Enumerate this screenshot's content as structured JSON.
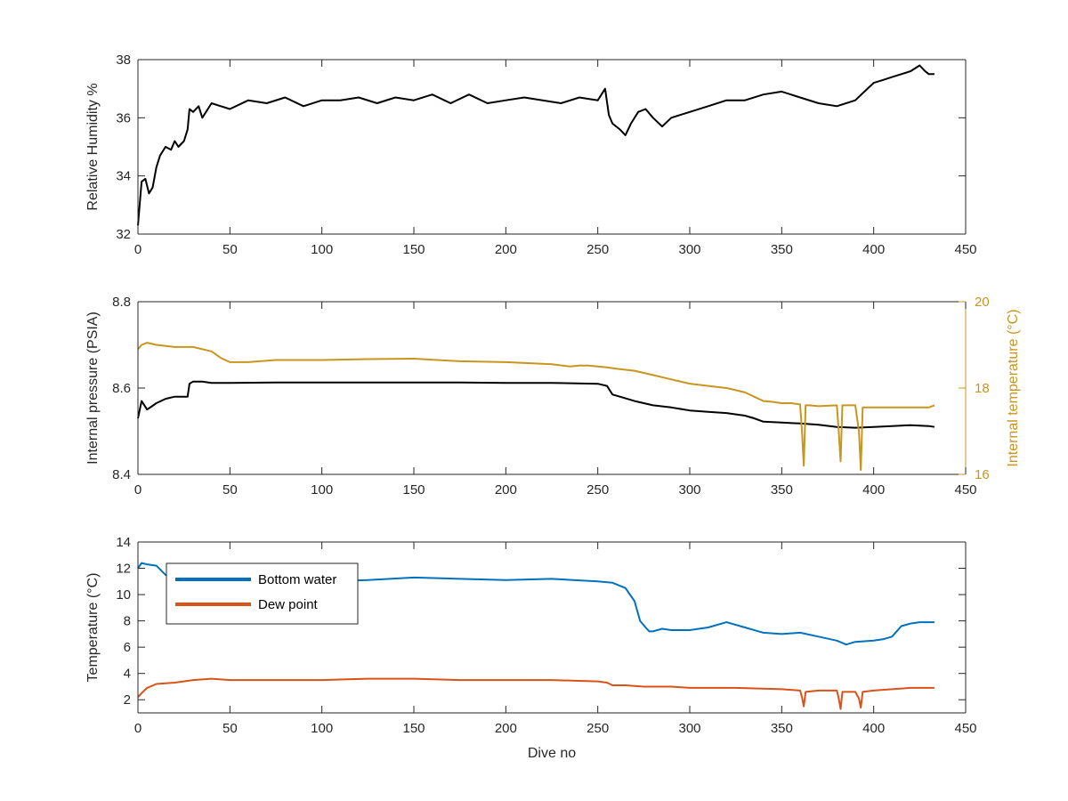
{
  "chart_data": [
    {
      "type": "line",
      "title": "",
      "xlabel": "",
      "ylabel": "Relative Humidity %",
      "xlim": [
        0,
        450
      ],
      "ylim": [
        32,
        38
      ],
      "xticks": [
        0,
        50,
        100,
        150,
        200,
        250,
        300,
        350,
        400,
        450
      ],
      "yticks": [
        32,
        34,
        36,
        38
      ],
      "grid": false,
      "series": [
        {
          "color": "#000000",
          "x": [
            0,
            2,
            4,
            6,
            8,
            10,
            12,
            15,
            18,
            20,
            22,
            25,
            27,
            28,
            30,
            33,
            35,
            40,
            45,
            50,
            60,
            70,
            80,
            90,
            100,
            110,
            120,
            130,
            140,
            150,
            160,
            170,
            180,
            190,
            200,
            210,
            220,
            230,
            240,
            250,
            254,
            256,
            258,
            262,
            265,
            268,
            272,
            276,
            280,
            285,
            290,
            300,
            310,
            320,
            330,
            340,
            350,
            360,
            370,
            380,
            390,
            395,
            400,
            405,
            410,
            415,
            420,
            425,
            428,
            430,
            433
          ],
          "y": [
            32.3,
            33.8,
            33.9,
            33.4,
            33.6,
            34.3,
            34.7,
            35.0,
            34.9,
            35.2,
            35.0,
            35.2,
            35.6,
            36.3,
            36.2,
            36.4,
            36.0,
            36.5,
            36.4,
            36.3,
            36.6,
            36.5,
            36.7,
            36.4,
            36.6,
            36.6,
            36.7,
            36.5,
            36.7,
            36.6,
            36.8,
            36.5,
            36.8,
            36.5,
            36.6,
            36.7,
            36.6,
            36.5,
            36.7,
            36.6,
            37.0,
            36.1,
            35.8,
            35.6,
            35.4,
            35.8,
            36.2,
            36.3,
            36.0,
            35.7,
            36.0,
            36.2,
            36.4,
            36.6,
            36.6,
            36.8,
            36.9,
            36.7,
            36.5,
            36.4,
            36.6,
            36.9,
            37.2,
            37.3,
            37.4,
            37.5,
            37.6,
            37.8,
            37.6,
            37.5,
            37.5
          ]
        }
      ]
    },
    {
      "type": "line",
      "title": "",
      "xlabel": "",
      "ylabel": "Internal pressure (PSIA)",
      "ylabel_right": "Internal temperature (°C)",
      "xlim": [
        0,
        450
      ],
      "ylim": [
        8.4,
        8.8
      ],
      "ylim_right": [
        16,
        20
      ],
      "xticks": [
        0,
        50,
        100,
        150,
        200,
        250,
        300,
        350,
        400,
        450
      ],
      "yticks": [
        8.4,
        8.6,
        8.8
      ],
      "yticks_right": [
        16,
        18,
        20
      ],
      "grid": false,
      "series": [
        {
          "axis": "left",
          "color": "#000000",
          "x": [
            0,
            2,
            5,
            10,
            15,
            20,
            25,
            27,
            28,
            30,
            35,
            40,
            50,
            75,
            100,
            125,
            150,
            175,
            200,
            225,
            250,
            255,
            258,
            262,
            270,
            280,
            290,
            300,
            310,
            320,
            330,
            335,
            340,
            350,
            360,
            370,
            380,
            390,
            400,
            410,
            420,
            430,
            433
          ],
          "y": [
            8.53,
            8.57,
            8.55,
            8.565,
            8.575,
            8.58,
            8.58,
            8.58,
            8.61,
            8.615,
            8.615,
            8.612,
            8.612,
            8.613,
            8.613,
            8.613,
            8.613,
            8.613,
            8.612,
            8.612,
            8.61,
            8.605,
            8.585,
            8.58,
            8.57,
            8.56,
            8.555,
            8.548,
            8.545,
            8.542,
            8.536,
            8.53,
            8.522,
            8.52,
            8.518,
            8.515,
            8.51,
            8.508,
            8.51,
            8.512,
            8.514,
            8.512,
            8.51
          ]
        },
        {
          "axis": "right",
          "color": "#C8961E",
          "x": [
            0,
            2,
            5,
            10,
            20,
            30,
            40,
            45,
            50,
            60,
            75,
            100,
            125,
            150,
            175,
            200,
            225,
            235,
            240,
            245,
            250,
            255,
            260,
            270,
            280,
            290,
            300,
            310,
            320,
            325,
            330,
            335,
            340,
            345,
            350,
            355,
            360,
            361,
            362,
            363,
            365,
            370,
            380,
            381,
            382,
            383,
            385,
            390,
            392,
            393,
            394,
            396,
            400,
            410,
            420,
            430,
            433
          ],
          "y": [
            18.9,
            19.0,
            19.05,
            19.0,
            18.95,
            18.95,
            18.85,
            18.7,
            18.6,
            18.6,
            18.65,
            18.65,
            18.67,
            18.68,
            18.62,
            18.6,
            18.55,
            18.5,
            18.52,
            18.52,
            18.5,
            18.48,
            18.45,
            18.4,
            18.3,
            18.2,
            18.1,
            18.05,
            18.0,
            17.95,
            17.9,
            17.8,
            17.7,
            17.68,
            17.65,
            17.65,
            17.62,
            17.0,
            16.2,
            17.6,
            17.6,
            17.58,
            17.6,
            17.0,
            16.3,
            17.6,
            17.6,
            17.6,
            17.0,
            16.1,
            17.55,
            17.55,
            17.55,
            17.55,
            17.55,
            17.55,
            17.6
          ]
        }
      ]
    },
    {
      "type": "line",
      "title": "",
      "xlabel": "Dive no",
      "ylabel": "Temperature (°C)",
      "xlim": [
        0,
        450
      ],
      "ylim": [
        1,
        14
      ],
      "xticks": [
        0,
        50,
        100,
        150,
        200,
        250,
        300,
        350,
        400,
        450
      ],
      "yticks": [
        2,
        4,
        6,
        8,
        10,
        12,
        14
      ],
      "grid": false,
      "legend": "top-left",
      "series": [
        {
          "name": "Bottom water",
          "color": "#0072BD",
          "x": [
            0,
            2,
            5,
            10,
            15,
            20,
            25,
            30,
            40,
            50,
            75,
            100,
            125,
            150,
            175,
            200,
            225,
            250,
            258,
            265,
            270,
            273,
            276,
            278,
            280,
            285,
            290,
            300,
            310,
            320,
            330,
            340,
            350,
            360,
            370,
            380,
            385,
            390,
            400,
            405,
            410,
            415,
            420,
            425,
            433
          ],
          "y": [
            12.0,
            12.4,
            12.3,
            12.2,
            11.5,
            11.2,
            11.1,
            11.0,
            11.0,
            11.0,
            11.1,
            11.0,
            11.1,
            11.3,
            11.2,
            11.1,
            11.2,
            11.0,
            10.9,
            10.5,
            9.5,
            8.0,
            7.5,
            7.2,
            7.2,
            7.4,
            7.3,
            7.3,
            7.5,
            7.9,
            7.5,
            7.1,
            7.0,
            7.1,
            6.8,
            6.5,
            6.2,
            6.4,
            6.5,
            6.6,
            6.8,
            7.6,
            7.8,
            7.9,
            7.9
          ]
        },
        {
          "name": "Dew point",
          "color": "#D95319",
          "x": [
            0,
            2,
            5,
            10,
            20,
            30,
            40,
            50,
            75,
            100,
            125,
            150,
            175,
            200,
            225,
            250,
            255,
            258,
            265,
            275,
            290,
            300,
            325,
            350,
            360,
            361,
            362,
            363,
            370,
            380,
            381,
            382,
            383,
            390,
            392,
            393,
            394,
            400,
            410,
            420,
            433
          ],
          "y": [
            2.2,
            2.5,
            2.9,
            3.2,
            3.3,
            3.5,
            3.6,
            3.5,
            3.5,
            3.5,
            3.6,
            3.6,
            3.5,
            3.5,
            3.5,
            3.4,
            3.3,
            3.1,
            3.1,
            3.0,
            3.0,
            2.9,
            2.9,
            2.8,
            2.7,
            2.2,
            1.5,
            2.6,
            2.7,
            2.7,
            2.1,
            1.3,
            2.6,
            2.6,
            2.1,
            1.4,
            2.6,
            2.7,
            2.8,
            2.9,
            2.9
          ]
        }
      ]
    }
  ]
}
